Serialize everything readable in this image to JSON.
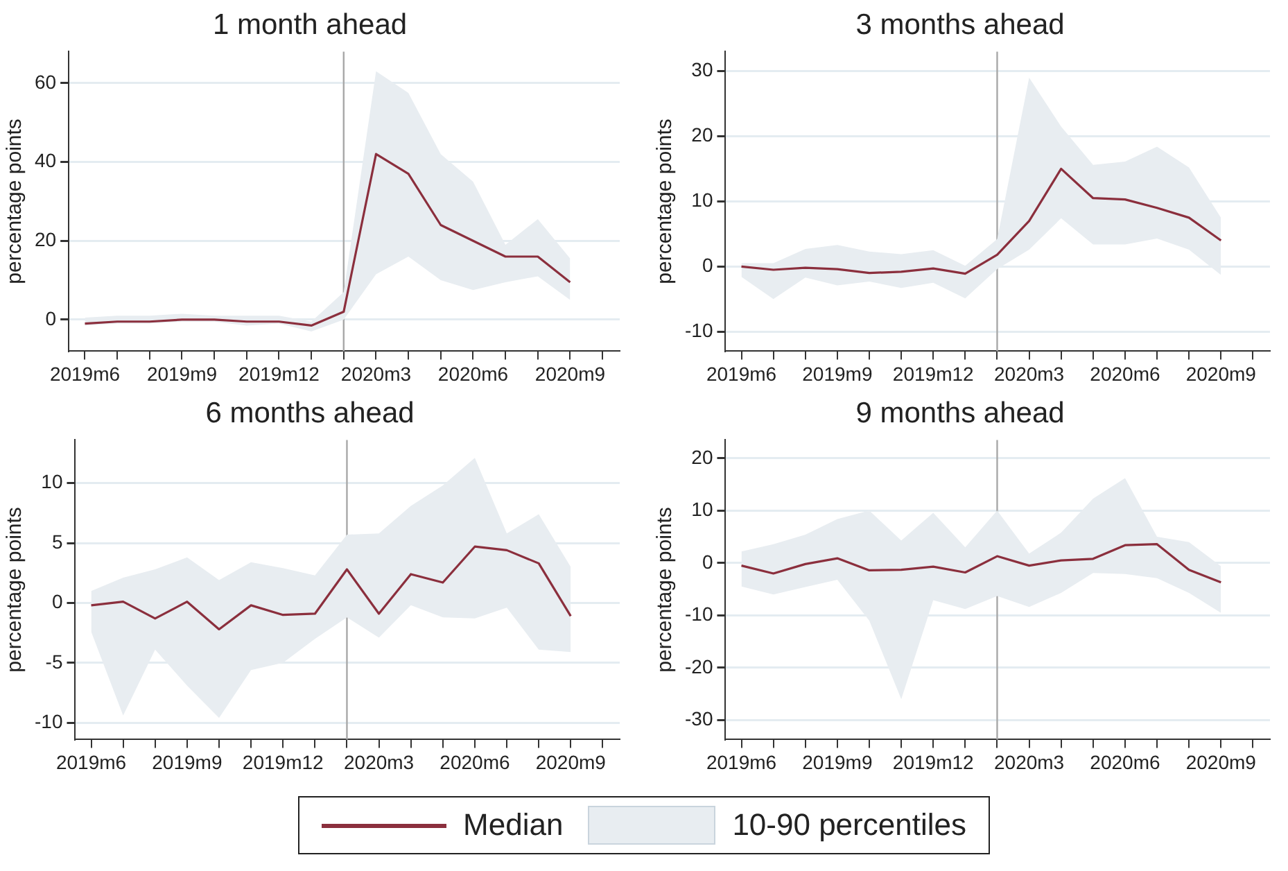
{
  "chart_data": [
    {
      "type": "line",
      "title": "1 month ahead",
      "ylabel": "percentage points",
      "x": [
        "2019-06",
        "2019-07",
        "2019-08",
        "2019-09",
        "2019-10",
        "2019-11",
        "2019-12",
        "2020-01",
        "2020-02",
        "2020-03",
        "2020-04",
        "2020-05",
        "2020-06",
        "2020-07",
        "2020-08",
        "2020-09"
      ],
      "series": [
        {
          "name": "Median",
          "color": "#8b2f3d",
          "values": [
            -1,
            -0.5,
            -0.5,
            0,
            0,
            -0.5,
            -0.5,
            -1.5,
            2,
            42,
            37,
            24,
            20,
            16,
            16,
            9.5
          ],
          "lower": [
            -1.5,
            -1,
            -1,
            -0.5,
            -0.5,
            -1.5,
            -1,
            -3,
            0,
            11.5,
            16,
            10,
            7.5,
            9.5,
            11,
            5
          ],
          "upper": [
            0.5,
            1,
            1,
            1.5,
            1,
            1,
            1,
            -0.5,
            7,
            63,
            57.5,
            42,
            35,
            19,
            25.5,
            15.5
          ]
        }
      ],
      "ylim": [
        -8,
        68
      ],
      "yticks": [
        0,
        20,
        40,
        60
      ],
      "xlim": [
        "2019-05-16",
        "2020-10-17"
      ],
      "xticks": [
        {
          "value": "2019-06",
          "label": "2019m6"
        },
        {
          "value": "2019-07",
          "label": null
        },
        {
          "value": "2019-08",
          "label": null
        },
        {
          "value": "2019-09",
          "label": "2019m9"
        },
        {
          "value": "2019-10",
          "label": null
        },
        {
          "value": "2019-11",
          "label": null
        },
        {
          "value": "2019-12",
          "label": "2019m12"
        },
        {
          "value": "2020-01",
          "label": null
        },
        {
          "value": "2020-02",
          "label": null
        },
        {
          "value": "2020-03",
          "label": "2020m3"
        },
        {
          "value": "2020-04",
          "label": null
        },
        {
          "value": "2020-05",
          "label": null
        },
        {
          "value": "2020-06",
          "label": "2020m6"
        },
        {
          "value": "2020-07",
          "label": null
        },
        {
          "value": "2020-08",
          "label": null
        },
        {
          "value": "2020-09",
          "label": "2020m9"
        },
        {
          "value": "2020-10",
          "label": null
        }
      ],
      "ref_lines": [
        {
          "axis": "x",
          "value": "2020-02",
          "color": "#a8a8a8"
        }
      ],
      "annotations": [
        "10-90 percentiles"
      ],
      "grid": "y",
      "legend": "bottom"
    },
    {
      "type": "line",
      "title": "3 months ahead",
      "ylabel": "percentage points",
      "x": [
        "2019-06",
        "2019-07",
        "2019-08",
        "2019-09",
        "2019-10",
        "2019-11",
        "2019-12",
        "2020-01",
        "2020-02",
        "2020-03",
        "2020-04",
        "2020-05",
        "2020-06",
        "2020-07",
        "2020-08",
        "2020-09"
      ],
      "series": [
        {
          "color": "#8b2f3d",
          "values": [
            0,
            -0.5,
            -0.2,
            -0.4,
            -1,
            -0.8,
            -0.3,
            -1.1,
            1.8,
            7,
            15,
            10.5,
            10.3,
            9,
            7.5,
            4
          ],
          "lower": [
            -1.6,
            -5,
            -1.7,
            -2.9,
            -2.3,
            -3.3,
            -2.5,
            -4.9,
            -0.4,
            2.6,
            7.4,
            3.4,
            3.4,
            4.3,
            2.6,
            -1.3
          ],
          "upper": [
            0.5,
            0.5,
            2.7,
            3.3,
            2.3,
            1.9,
            2.5,
            0.1,
            4.2,
            29,
            21.5,
            15.6,
            16.1,
            18.4,
            15.2,
            7.5
          ]
        }
      ],
      "ylim": [
        -13,
        33
      ],
      "yticks": [
        -10,
        0,
        10,
        20,
        30
      ],
      "xlim": [
        "2019-05-16",
        "2020-10-17"
      ],
      "xticks": [
        {
          "value": "2019-06",
          "label": "2019m6"
        },
        {
          "value": "2019-07",
          "label": null
        },
        {
          "value": "2019-08",
          "label": null
        },
        {
          "value": "2019-09",
          "label": "2019m9"
        },
        {
          "value": "2019-10",
          "label": null
        },
        {
          "value": "2019-11",
          "label": null
        },
        {
          "value": "2019-12",
          "label": "2019m12"
        },
        {
          "value": "2020-01",
          "label": null
        },
        {
          "value": "2020-02",
          "label": null
        },
        {
          "value": "2020-03",
          "label": "2020m3"
        },
        {
          "value": "2020-04",
          "label": null
        },
        {
          "value": "2020-05",
          "label": null
        },
        {
          "value": "2020-06",
          "label": "2020m6"
        },
        {
          "value": "2020-07",
          "label": null
        },
        {
          "value": "2020-08",
          "label": null
        },
        {
          "value": "2020-09",
          "label": "2020m9"
        },
        {
          "value": "2020-10",
          "label": null
        }
      ],
      "ref_lines": [
        {
          "axis": "x",
          "value": "2020-02",
          "color": "#a8a8a8"
        }
      ],
      "grid": "y"
    },
    {
      "type": "line",
      "title": "6 months ahead",
      "ylabel": "percentage points",
      "x": [
        "2019-06",
        "2019-07",
        "2019-08",
        "2019-09",
        "2019-10",
        "2019-11",
        "2019-12",
        "2020-01",
        "2020-02",
        "2020-03",
        "2020-04",
        "2020-05",
        "2020-06",
        "2020-07",
        "2020-08",
        "2020-09"
      ],
      "series": [
        {
          "color": "#8b2f3d",
          "values": [
            -0.2,
            0.1,
            -1.3,
            0.1,
            -2.2,
            -0.2,
            -1.0,
            -0.9,
            2.8,
            -0.9,
            2.4,
            1.7,
            4.7,
            4.4,
            3.3,
            -1.1
          ],
          "lower": [
            -2.4,
            -9.4,
            -3.9,
            -6.9,
            -9.6,
            -5.6,
            -5.0,
            -3.0,
            -1.2,
            -2.9,
            -0.2,
            -1.2,
            -1.3,
            -0.4,
            -3.9,
            -4.1
          ],
          "upper": [
            1.0,
            2.1,
            2.8,
            3.8,
            1.9,
            3.4,
            2.9,
            2.3,
            5.7,
            5.8,
            8.1,
            9.8,
            12.1,
            5.8,
            7.4,
            3.0
          ]
        }
      ],
      "ylim": [
        -11.4,
        13.6
      ],
      "yticks": [
        -10,
        -5,
        0,
        5,
        10
      ],
      "xlim": [
        "2019-05-16",
        "2020-10-17"
      ],
      "xticks": [
        {
          "value": "2019-06",
          "label": "2019m6"
        },
        {
          "value": "2019-07",
          "label": null
        },
        {
          "value": "2019-08",
          "label": null
        },
        {
          "value": "2019-09",
          "label": "2019m9"
        },
        {
          "value": "2019-10",
          "label": null
        },
        {
          "value": "2019-11",
          "label": null
        },
        {
          "value": "2019-12",
          "label": "2019m12"
        },
        {
          "value": "2020-01",
          "label": null
        },
        {
          "value": "2020-02",
          "label": null
        },
        {
          "value": "2020-03",
          "label": "2020m3"
        },
        {
          "value": "2020-04",
          "label": null
        },
        {
          "value": "2020-05",
          "label": null
        },
        {
          "value": "2020-06",
          "label": "2020m6"
        },
        {
          "value": "2020-07",
          "label": null
        },
        {
          "value": "2020-08",
          "label": null
        },
        {
          "value": "2020-09",
          "label": "2020m9"
        },
        {
          "value": "2020-10",
          "label": null
        }
      ],
      "ref_lines": [
        {
          "axis": "x",
          "value": "2020-02",
          "color": "#a8a8a8"
        }
      ],
      "grid": "y"
    },
    {
      "type": "line",
      "title": "9 months ahead",
      "ylabel": "percentage points",
      "x": [
        "2019-06",
        "2019-07",
        "2019-08",
        "2019-09",
        "2019-10",
        "2019-11",
        "2019-12",
        "2020-01",
        "2020-02",
        "2020-03",
        "2020-04",
        "2020-05",
        "2020-06",
        "2020-07",
        "2020-08",
        "2020-09"
      ],
      "series": [
        {
          "color": "#8b2f3d",
          "values": [
            -0.5,
            -2,
            -0.2,
            0.9,
            -1.4,
            -1.3,
            -0.7,
            -1.8,
            1.3,
            -0.5,
            0.5,
            0.8,
            3.4,
            3.6,
            -1.3,
            -3.7
          ],
          "lower": [
            -4.5,
            -6,
            -4.6,
            -3.2,
            -11,
            -26,
            -7.1,
            -8.8,
            -6.3,
            -8.4,
            -5.7,
            -1.9,
            -2.1,
            -2.9,
            -5.7,
            -9.5
          ],
          "upper": [
            2.2,
            3.6,
            5.4,
            8.4,
            10,
            4.3,
            9.6,
            3,
            10,
            1.8,
            5.8,
            12.3,
            16.2,
            5,
            4,
            -0.6
          ]
        }
      ],
      "ylim": [
        -33.7,
        23.5
      ],
      "yticks": [
        -30,
        -20,
        -10,
        0,
        10,
        20
      ],
      "xlim": [
        "2019-05-16",
        "2020-10-17"
      ],
      "xticks": [
        {
          "value": "2019-06",
          "label": "2019m6"
        },
        {
          "value": "2019-07",
          "label": null
        },
        {
          "value": "2019-08",
          "label": null
        },
        {
          "value": "2019-09",
          "label": "2019m9"
        },
        {
          "value": "2019-10",
          "label": null
        },
        {
          "value": "2019-11",
          "label": null
        },
        {
          "value": "2019-12",
          "label": "2019m12"
        },
        {
          "value": "2020-01",
          "label": null
        },
        {
          "value": "2020-02",
          "label": null
        },
        {
          "value": "2020-03",
          "label": "2020m3"
        },
        {
          "value": "2020-04",
          "label": null
        },
        {
          "value": "2020-05",
          "label": null
        },
        {
          "value": "2020-06",
          "label": "2020m6"
        },
        {
          "value": "2020-07",
          "label": null
        },
        {
          "value": "2020-08",
          "label": null
        },
        {
          "value": "2020-09",
          "label": "2020m9"
        },
        {
          "value": "2020-10",
          "label": null
        }
      ],
      "ref_lines": [
        {
          "axis": "x",
          "value": "2020-02",
          "color": "#a8a8a8"
        }
      ],
      "grid": "y"
    }
  ]
}
